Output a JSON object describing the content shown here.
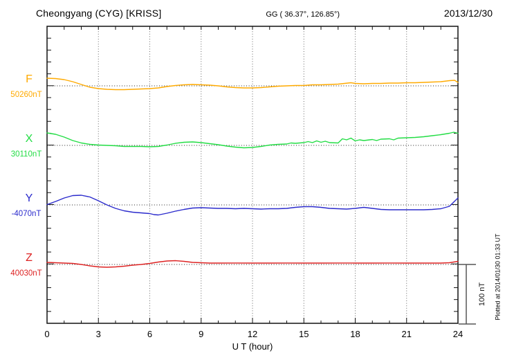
{
  "header": {
    "station": "Cheongyang (CYG)  [KRISS]",
    "coords": "GG ( 36.37°, 126.85°)",
    "date": "2013/12/30"
  },
  "x_axis": {
    "label": "U T (hour)",
    "min": 0,
    "max": 24,
    "major_ticks": [
      0,
      3,
      6,
      9,
      12,
      15,
      18,
      21,
      24
    ],
    "minor_step_hours": 1
  },
  "scale_bar": {
    "label": "100 nT",
    "nT": 100
  },
  "plotted_note": "Plotted at 2014/01/30 01:33 UT",
  "chart_data": {
    "type": "line",
    "title": "Cheongyang (CYG)  [KRISS]",
    "subtitle": "GG ( 36.37°, 126.85°)",
    "date": "2013/12/30",
    "xlabel": "U T (hour)",
    "xlim": [
      0,
      24
    ],
    "x_major_ticks": [
      0,
      3,
      6,
      9,
      12,
      15,
      18,
      21,
      24
    ],
    "grid": "dotted vertical lines every 3 hours; dotted horizontal line at each component baseline",
    "legend_position": "left margin (component letter above baseline value)",
    "scale": {
      "bar_label": "100 nT",
      "bar_nT": 100
    },
    "series": [
      {
        "name": "F",
        "color": "#ffaa00",
        "baseline_label": "50260nT",
        "baseline_nT": 50260,
        "units": "nT",
        "points_hour_dnT": [
          [
            0,
            12.8
          ],
          [
            0.5,
            12.2
          ],
          [
            1,
            10.5
          ],
          [
            1.5,
            7.0
          ],
          [
            2,
            2.3
          ],
          [
            2.5,
            -2.3
          ],
          [
            3,
            -4.7
          ],
          [
            3.5,
            -5.8
          ],
          [
            4,
            -6.4
          ],
          [
            4.5,
            -6.4
          ],
          [
            5,
            -5.8
          ],
          [
            5.5,
            -5.2
          ],
          [
            6,
            -4.7
          ],
          [
            6.5,
            -3.5
          ],
          [
            7,
            -1.2
          ],
          [
            7.5,
            0.6
          ],
          [
            8,
            1.7
          ],
          [
            8.5,
            2.3
          ],
          [
            9,
            1.7
          ],
          [
            9.5,
            1.2
          ],
          [
            10,
            0
          ],
          [
            10.5,
            -1.7
          ],
          [
            11,
            -2.9
          ],
          [
            11.5,
            -3.5
          ],
          [
            12,
            -3.5
          ],
          [
            12.5,
            -2.9
          ],
          [
            13,
            -1.7
          ],
          [
            13.5,
            -0.6
          ],
          [
            14,
            0
          ],
          [
            14.5,
            0.6
          ],
          [
            15,
            0.6
          ],
          [
            15.5,
            1.7
          ],
          [
            16,
            1.7
          ],
          [
            16.5,
            2.3
          ],
          [
            17,
            2.9
          ],
          [
            17.75,
            5.2
          ],
          [
            18,
            4.1
          ],
          [
            18.5,
            3.5
          ],
          [
            19,
            4.1
          ],
          [
            19.5,
            4.1
          ],
          [
            20,
            4.7
          ],
          [
            20.5,
            4.7
          ],
          [
            21,
            5.2
          ],
          [
            21.5,
            5.2
          ],
          [
            22,
            5.8
          ],
          [
            22.5,
            6.4
          ],
          [
            23,
            7.0
          ],
          [
            23.5,
            8.7
          ],
          [
            23.8,
            9.3
          ],
          [
            24,
            5.8
          ]
        ]
      },
      {
        "name": "X",
        "color": "#22dd44",
        "baseline_label": "30110nT",
        "baseline_nT": 30110,
        "units": "nT",
        "points_hour_dnT": [
          [
            0,
            20.9
          ],
          [
            0.5,
            18.6
          ],
          [
            1,
            14.0
          ],
          [
            1.5,
            8.1
          ],
          [
            2,
            4.1
          ],
          [
            2.5,
            1.7
          ],
          [
            3,
            0.6
          ],
          [
            3.5,
            0
          ],
          [
            4,
            -0.6
          ],
          [
            4.5,
            -1.7
          ],
          [
            5,
            -1.7
          ],
          [
            5.5,
            -1.7
          ],
          [
            6,
            -2.3
          ],
          [
            6.5,
            -1.7
          ],
          [
            7,
            0.6
          ],
          [
            7.5,
            3.5
          ],
          [
            8,
            5.2
          ],
          [
            8.5,
            5.8
          ],
          [
            9,
            4.7
          ],
          [
            9.5,
            2.9
          ],
          [
            10,
            1.2
          ],
          [
            10.5,
            -1.2
          ],
          [
            11,
            -2.9
          ],
          [
            11.5,
            -4.1
          ],
          [
            12,
            -3.5
          ],
          [
            12.5,
            -1.7
          ],
          [
            13,
            0.6
          ],
          [
            13.5,
            1.7
          ],
          [
            14,
            2.3
          ],
          [
            14.25,
            4.1
          ],
          [
            14.5,
            3.5
          ],
          [
            15,
            4.7
          ],
          [
            15.25,
            6.4
          ],
          [
            15.5,
            4.7
          ],
          [
            15.75,
            7.6
          ],
          [
            16,
            5.2
          ],
          [
            16.25,
            7.0
          ],
          [
            16.5,
            4.7
          ],
          [
            17,
            4.1
          ],
          [
            17.25,
            11.0
          ],
          [
            17.5,
            9.3
          ],
          [
            17.75,
            12.2
          ],
          [
            18,
            7.6
          ],
          [
            18.25,
            9.3
          ],
          [
            18.5,
            8.1
          ],
          [
            19,
            9.9
          ],
          [
            19.25,
            8.1
          ],
          [
            19.5,
            10.5
          ],
          [
            20,
            11.0
          ],
          [
            20.25,
            9.3
          ],
          [
            20.5,
            12.2
          ],
          [
            21,
            12.8
          ],
          [
            21.5,
            13.4
          ],
          [
            22,
            14.5
          ],
          [
            22.5,
            16.3
          ],
          [
            23,
            18.0
          ],
          [
            23.5,
            20.3
          ],
          [
            23.75,
            22.1
          ],
          [
            24,
            20.3
          ]
        ]
      },
      {
        "name": "Y",
        "color": "#2a2acc",
        "baseline_label": "-4070nT",
        "baseline_nT": -4070,
        "units": "nT",
        "points_hour_dnT": [
          [
            0,
            0.6
          ],
          [
            0.5,
            5.8
          ],
          [
            1,
            11.6
          ],
          [
            1.5,
            15.7
          ],
          [
            2,
            16.3
          ],
          [
            2.5,
            13.4
          ],
          [
            3,
            7.0
          ],
          [
            3.5,
            0
          ],
          [
            4,
            -5.8
          ],
          [
            4.5,
            -9.9
          ],
          [
            5,
            -12.2
          ],
          [
            5.5,
            -13.4
          ],
          [
            6,
            -14.5
          ],
          [
            6.25,
            -16.3
          ],
          [
            6.5,
            -16.9
          ],
          [
            7,
            -14.0
          ],
          [
            7.5,
            -10.5
          ],
          [
            8,
            -7.6
          ],
          [
            8.5,
            -5.2
          ],
          [
            9,
            -4.7
          ],
          [
            9.5,
            -5.2
          ],
          [
            10,
            -5.8
          ],
          [
            10.5,
            -5.8
          ],
          [
            11,
            -6.4
          ],
          [
            11.5,
            -5.8
          ],
          [
            12,
            -6.4
          ],
          [
            12.5,
            -7.0
          ],
          [
            13,
            -6.4
          ],
          [
            13.5,
            -6.4
          ],
          [
            14,
            -5.8
          ],
          [
            14.5,
            -4.1
          ],
          [
            15,
            -2.9
          ],
          [
            15.5,
            -2.9
          ],
          [
            16,
            -4.1
          ],
          [
            16.5,
            -5.8
          ],
          [
            17,
            -6.4
          ],
          [
            17.5,
            -7.0
          ],
          [
            18,
            -5.8
          ],
          [
            18.5,
            -4.1
          ],
          [
            19,
            -5.8
          ],
          [
            19.5,
            -7.6
          ],
          [
            20,
            -8.1
          ],
          [
            20.5,
            -8.1
          ],
          [
            21,
            -8.1
          ],
          [
            21.5,
            -8.1
          ],
          [
            22,
            -8.1
          ],
          [
            22.5,
            -7.6
          ],
          [
            23,
            -6.4
          ],
          [
            23.5,
            -2.3
          ],
          [
            24,
            11.6
          ]
        ]
      },
      {
        "name": "Z",
        "color": "#dd2222",
        "baseline_label": "40030nT",
        "baseline_nT": 40030,
        "units": "nT",
        "points_hour_dnT": [
          [
            0,
            3.5
          ],
          [
            0.5,
            2.9
          ],
          [
            1,
            2.3
          ],
          [
            1.5,
            1.7
          ],
          [
            2,
            0
          ],
          [
            2.5,
            -2.3
          ],
          [
            3,
            -4.1
          ],
          [
            3.5,
            -4.7
          ],
          [
            4,
            -4.1
          ],
          [
            4.5,
            -2.9
          ],
          [
            5,
            -1.2
          ],
          [
            5.5,
            0
          ],
          [
            6,
            1.7
          ],
          [
            6.5,
            4.1
          ],
          [
            7,
            5.8
          ],
          [
            7.5,
            6.4
          ],
          [
            8,
            5.2
          ],
          [
            8.5,
            3.5
          ],
          [
            9,
            2.9
          ],
          [
            9.5,
            2.3
          ],
          [
            10,
            2.3
          ],
          [
            11,
            2.5
          ],
          [
            12,
            2.3
          ],
          [
            13,
            2.3
          ],
          [
            14,
            2.5
          ],
          [
            15,
            2.3
          ],
          [
            16,
            2.3
          ],
          [
            17,
            2.5
          ],
          [
            18,
            2.3
          ],
          [
            19,
            2.3
          ],
          [
            20,
            2.5
          ],
          [
            21,
            2.3
          ],
          [
            22,
            2.3
          ],
          [
            23,
            2.3
          ],
          [
            23.5,
            2.9
          ],
          [
            24,
            5.2
          ]
        ]
      }
    ]
  }
}
